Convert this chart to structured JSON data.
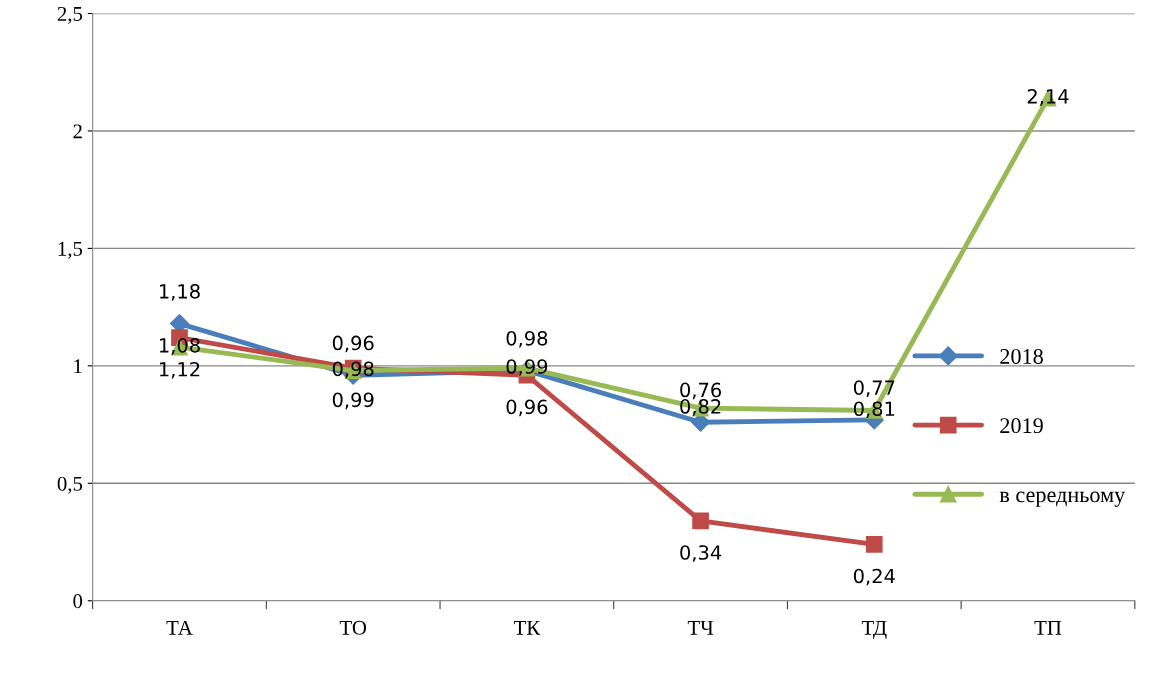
{
  "chart_data": {
    "type": "line",
    "categories": [
      "ТА",
      "ТО",
      "ТК",
      "ТЧ",
      "ТД",
      "ТП"
    ],
    "series": [
      {
        "name": "2018",
        "color": "#4a7ebb",
        "marker": "diamond",
        "values": [
          1.18,
          0.96,
          0.98,
          0.76,
          0.77,
          null
        ],
        "value_labels": [
          "1,18",
          "0,96",
          "0,98",
          "0,76",
          "0,77",
          null
        ]
      },
      {
        "name": "2019",
        "color": "#be4b48",
        "marker": "square",
        "values": [
          1.12,
          0.99,
          0.96,
          0.34,
          0.24,
          null
        ],
        "value_labels": [
          "1,12",
          "0,99",
          "0,96",
          "0,34",
          "0,24",
          null
        ]
      },
      {
        "name": "в середньому",
        "color": "#98b954",
        "marker": "triangle",
        "values": [
          1.08,
          0.98,
          0.99,
          0.82,
          0.81,
          2.14
        ],
        "value_labels": [
          "1,08",
          "0,98",
          "0,99",
          "0,82",
          "0,81",
          "2,14"
        ]
      }
    ],
    "ylim": [
      0,
      2.5
    ],
    "yticks": [
      0,
      {
        "value": 0.5,
        "label": "0,5"
      },
      1,
      {
        "value": 1.5,
        "label": "1,5"
      },
      2,
      {
        "value": 2.5,
        "label": "2,5"
      }
    ],
    "grid": "y",
    "legend": "right",
    "line_style": "solid"
  }
}
